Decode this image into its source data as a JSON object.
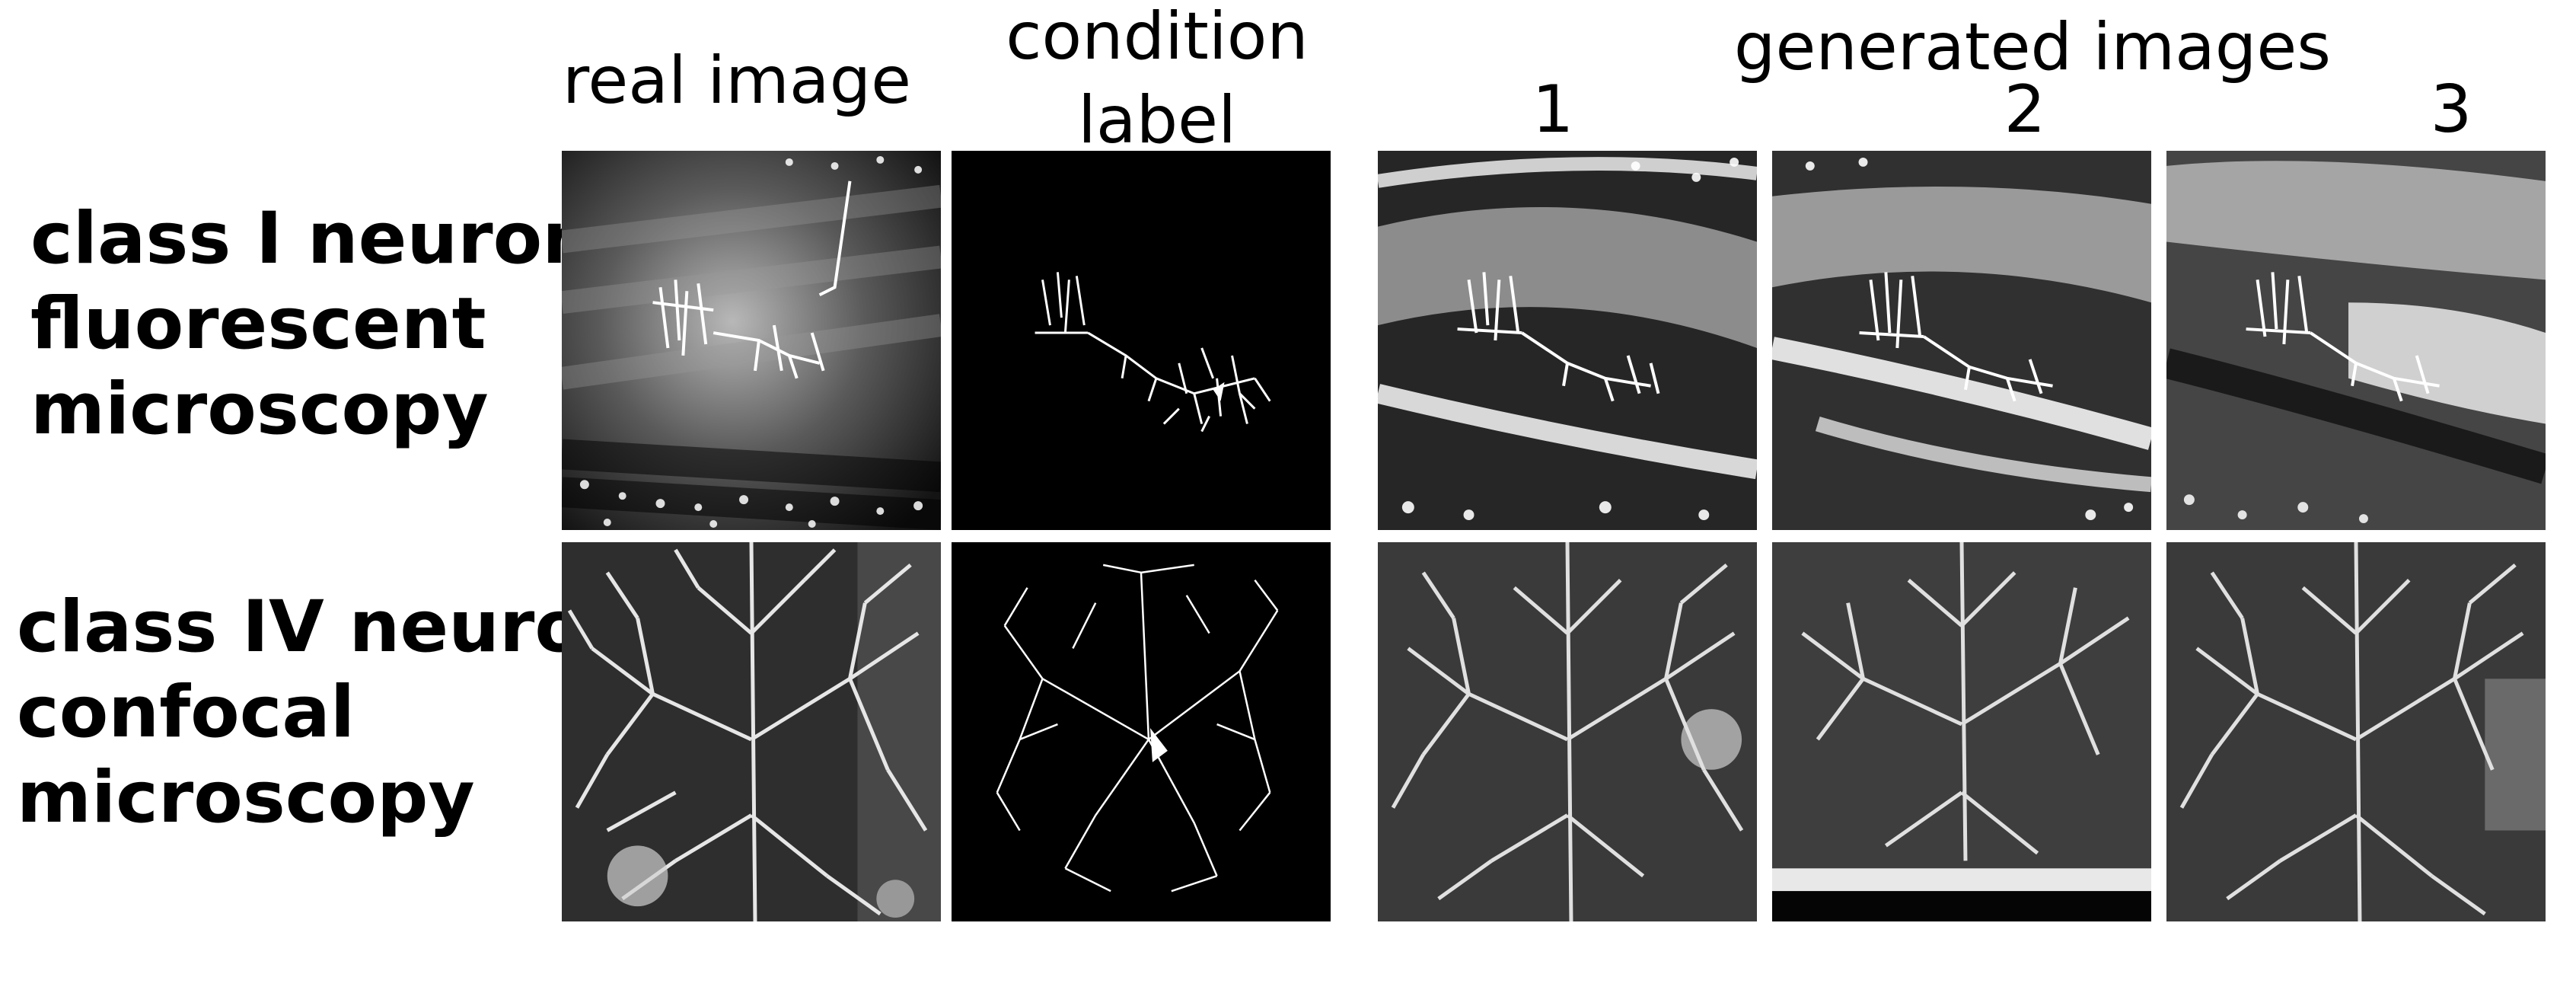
{
  "headers": {
    "real_image": "real image",
    "condition_line1": "condition",
    "condition_line2": "label",
    "generated": "generated images",
    "gen_numbers": [
      "1",
      "2",
      "3"
    ]
  },
  "rows": [
    {
      "label_lines": [
        "class I neuron",
        "fluorescent",
        "microscopy"
      ]
    },
    {
      "label_lines": [
        "class IV neuron",
        "confocal",
        "microscopy"
      ]
    }
  ]
}
